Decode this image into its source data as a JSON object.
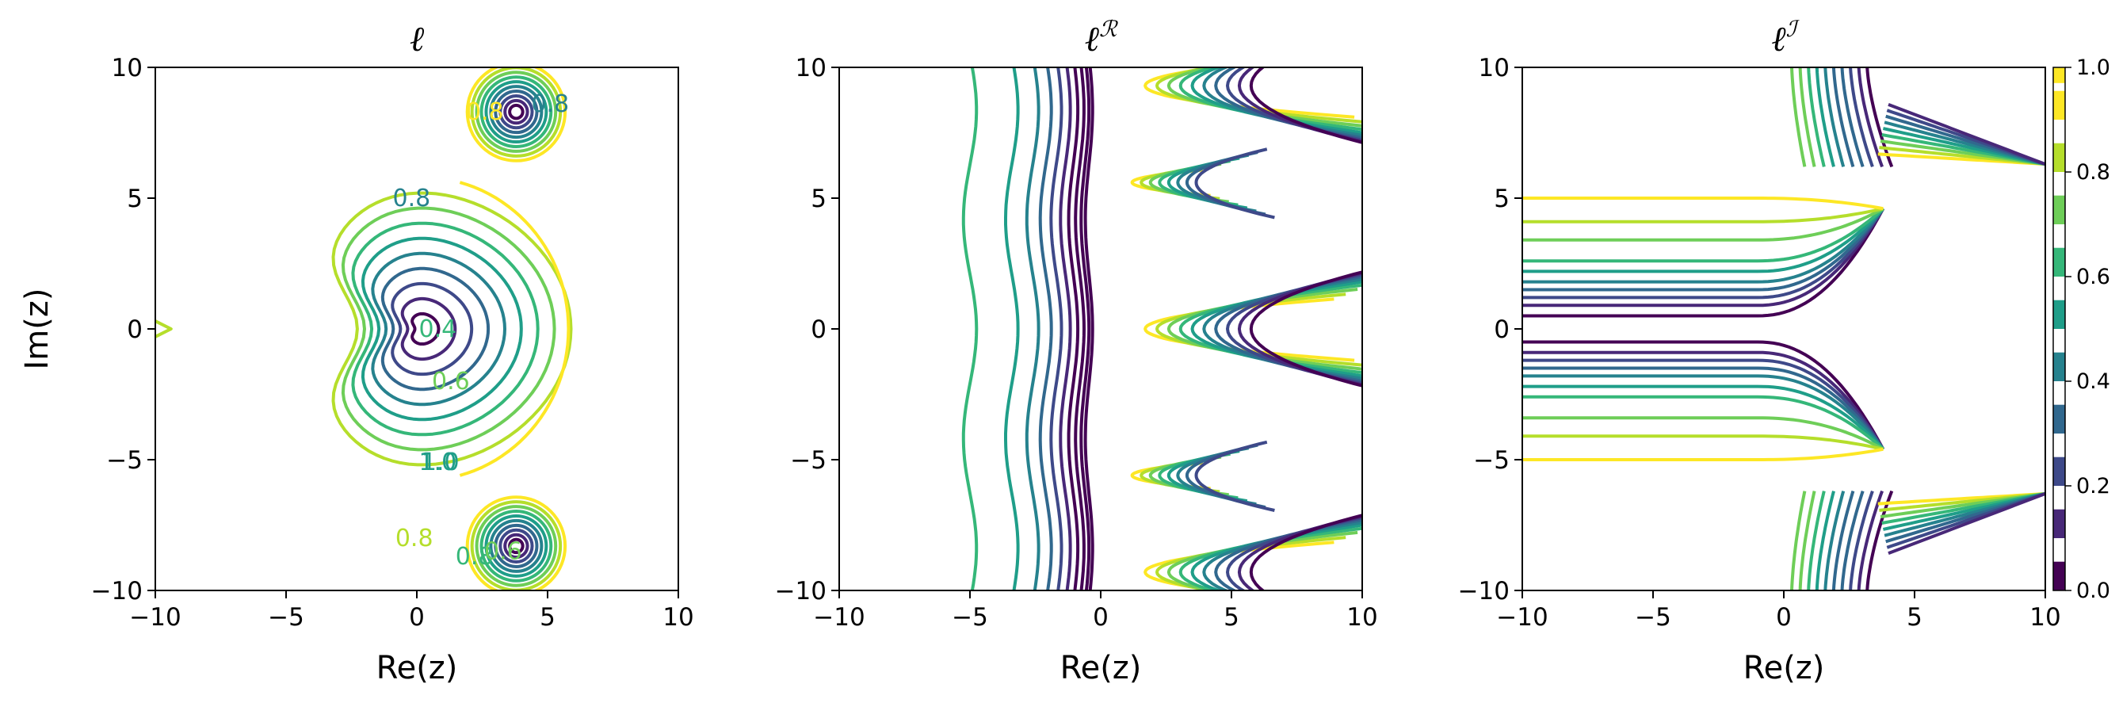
{
  "figure": {
    "colormap": [
      "#440154",
      "#482878",
      "#3e4989",
      "#31688e",
      "#26828e",
      "#1f9e89",
      "#35b779",
      "#6ece58",
      "#b5de2b",
      "#fde725"
    ]
  },
  "chart_data": [
    {
      "type": "contour",
      "title": "ℓ",
      "title_sup": "",
      "xlabel": "Re(z)",
      "ylabel": "Im(z)",
      "xlim": [
        -10,
        10
      ],
      "ylim": [
        -10,
        10
      ],
      "xticks": [
        "−10",
        "−5",
        "0",
        "5",
        "10"
      ],
      "yticks": [
        "−10",
        "−5",
        "0",
        "5",
        "10"
      ],
      "levels": [
        0.1,
        0.2,
        0.3,
        0.4,
        0.5,
        0.6,
        0.7,
        0.8,
        0.9,
        1.0
      ],
      "contour_labels": [
        "0.8",
        "1.0",
        "0.4",
        "0.6",
        "0.8",
        "0.8",
        "0.8",
        "1.0",
        "0.8",
        "0.6"
      ]
    },
    {
      "type": "contour",
      "title": "ℓ",
      "title_sup": "ℛ",
      "xlabel": "Re(z)",
      "ylabel": "",
      "xlim": [
        -10,
        10
      ],
      "ylim": [
        -10,
        10
      ],
      "xticks": [
        "−10",
        "−5",
        "0",
        "5",
        "10"
      ],
      "yticks": [
        "−10",
        "−5",
        "0",
        "5",
        "10"
      ],
      "levels": [
        0.1,
        0.2,
        0.3,
        0.4,
        0.5,
        0.6,
        0.7,
        0.8,
        0.9,
        1.0
      ]
    },
    {
      "type": "contour",
      "title": "ℓ",
      "title_sup": "ℐ",
      "xlabel": "Re(z)",
      "ylabel": "",
      "xlim": [
        -10,
        10
      ],
      "ylim": [
        -10,
        10
      ],
      "xticks": [
        "−10",
        "−5",
        "0",
        "5",
        "10"
      ],
      "yticks": [
        "−10",
        "−5",
        "0",
        "5",
        "10"
      ],
      "levels": [
        0.1,
        0.2,
        0.3,
        0.4,
        0.5,
        0.6,
        0.7,
        0.8,
        0.9,
        1.0
      ]
    }
  ],
  "colorbar": {
    "ticks": [
      "0.0",
      "0.2",
      "0.4",
      "0.6",
      "0.8",
      "1.0"
    ],
    "min": 0.0,
    "max": 1.0
  }
}
